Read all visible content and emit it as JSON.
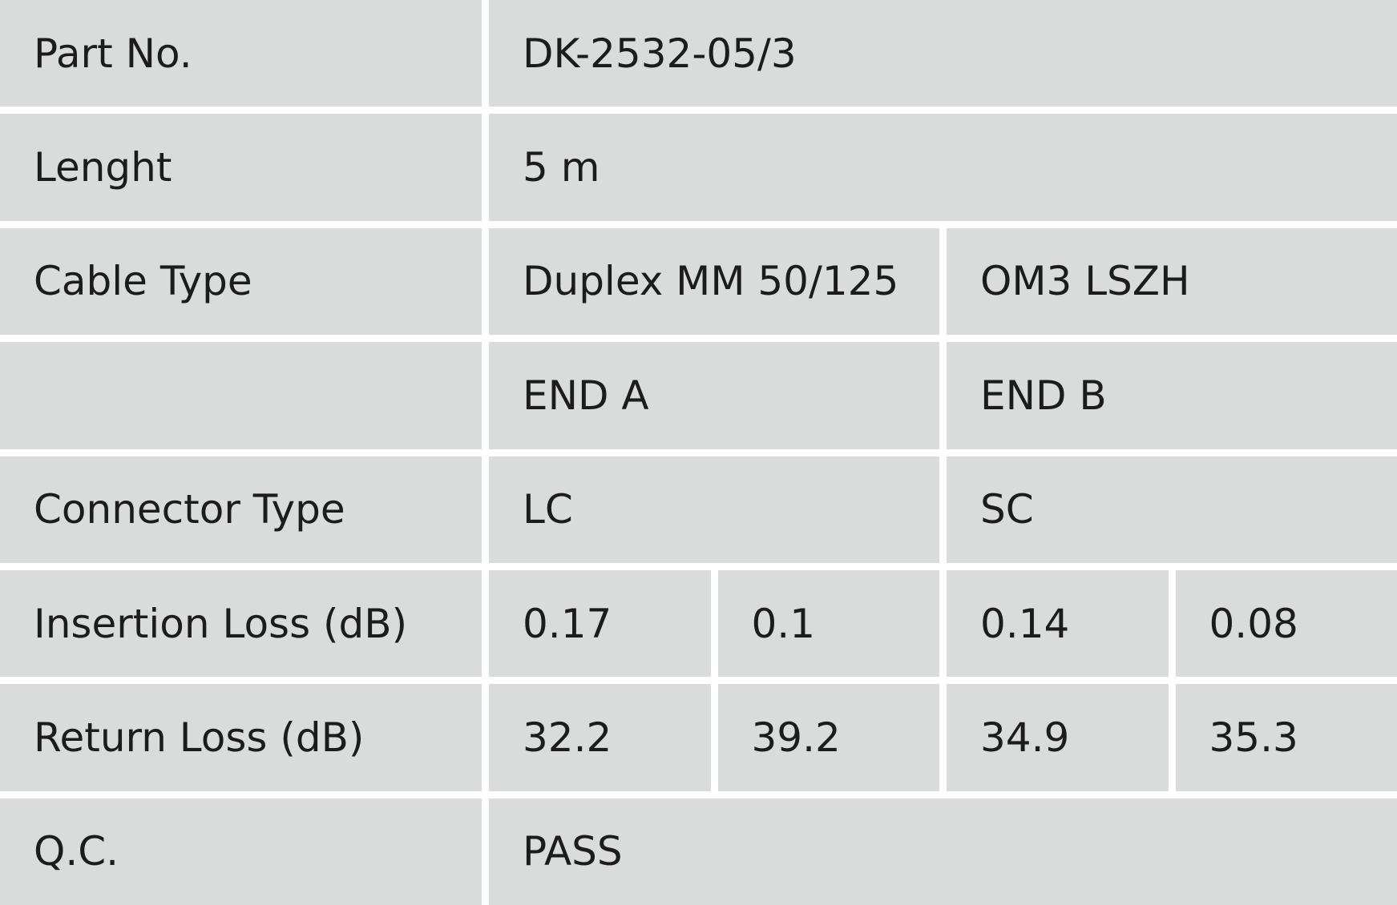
{
  "table": {
    "rows": [
      {
        "label": "Part No.",
        "values": [
          "DK-2532-05/3"
        ]
      },
      {
        "label": "Lenght",
        "values": [
          "5 m"
        ]
      },
      {
        "label": "Cable Type",
        "values": [
          "Duplex MM 50/125",
          "OM3 LSZH"
        ]
      },
      {
        "values": [
          "END A",
          "END B"
        ]
      },
      {
        "label": "Connector Type",
        "values": [
          "LC",
          "SC"
        ]
      },
      {
        "label": "Insertion Loss (dB)",
        "values": [
          0.17,
          0.1,
          0.14,
          0.08
        ]
      },
      {
        "label": "Return Loss (dB)",
        "values": [
          32.2,
          39.2,
          34.9,
          35.3
        ]
      },
      {
        "label": "Q.C.",
        "values": [
          "PASS"
        ]
      }
    ]
  }
}
